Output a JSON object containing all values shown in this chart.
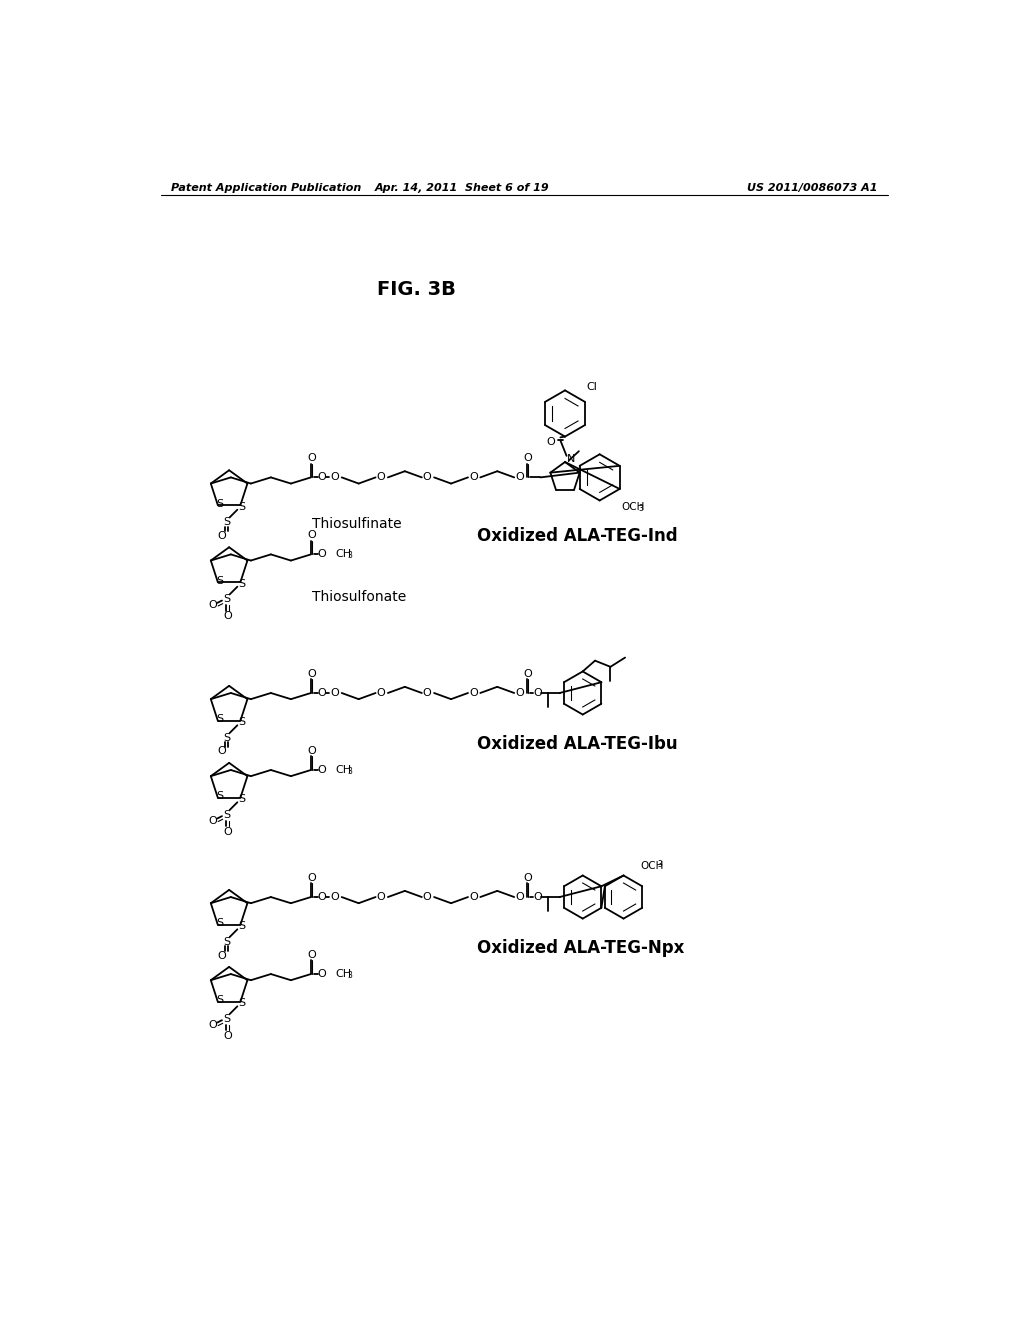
{
  "background_color": "#ffffff",
  "header_left": "Patent Application Publication",
  "header_center": "Apr. 14, 2011  Sheet 6 of 19",
  "header_right": "US 2011/0086073 A1",
  "fig_label": "FIG. 3B",
  "label_thiosulfinate": "Thiosulfinate",
  "label_thiosulfonate": "Thiosulfonate",
  "label_ind": "Oxidized ALA-TEG-Ind",
  "label_ibu": "Oxidized ALA-TEG-Ibu",
  "label_npx": "Oxidized ALA-TEG-Npx",
  "label_och3": "OCH",
  "label_cl": "Cl"
}
